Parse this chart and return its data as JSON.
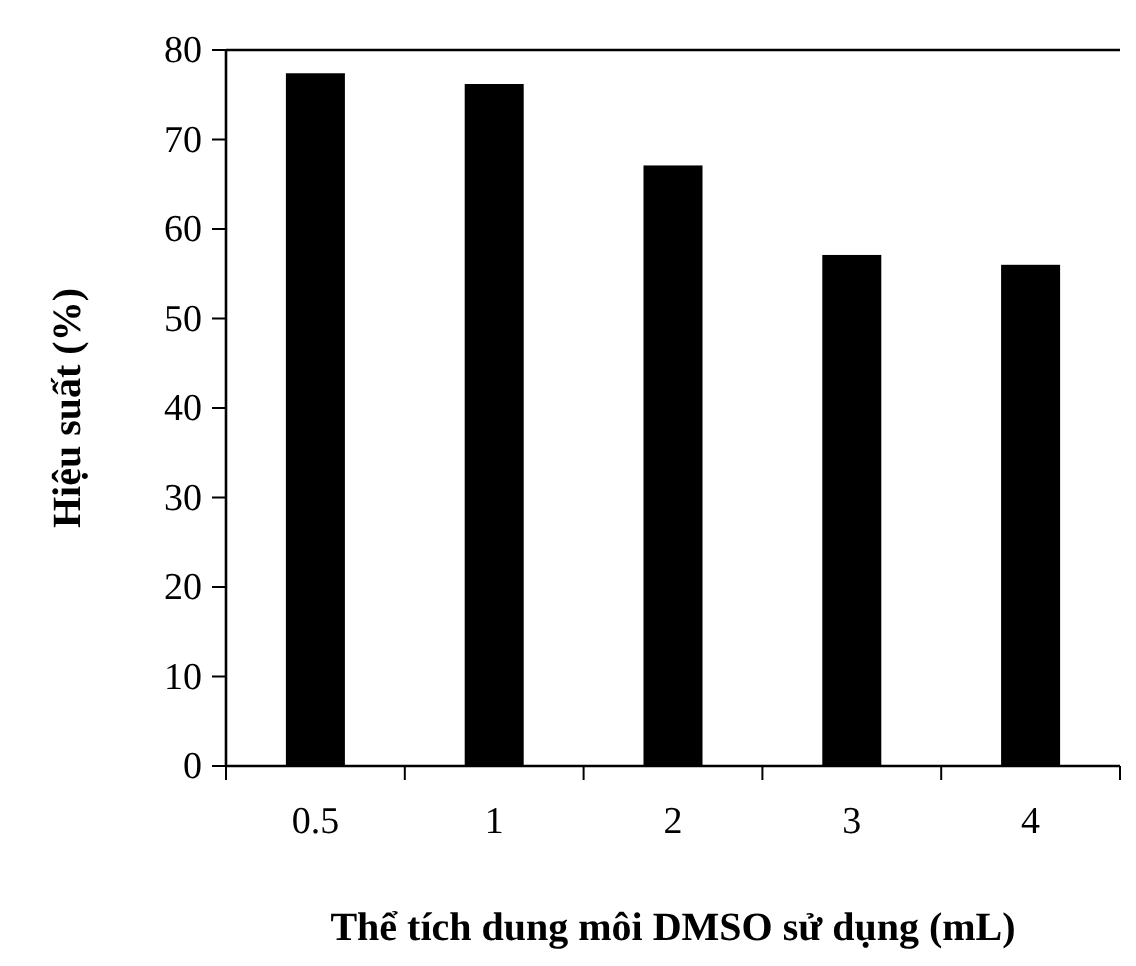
{
  "chart_data": {
    "type": "bar",
    "xlabel": "Thể tích dung môi DMSO sử dụng (mL)",
    "ylabel": "Hiệu suất (%)",
    "categories": [
      "0.5",
      "1",
      "2",
      "3",
      "4"
    ],
    "values": [
      77.4,
      76.2,
      67.1,
      57.1,
      56.0
    ],
    "color": "#000000",
    "ylim": [
      0,
      80
    ],
    "yticks": [
      0,
      10,
      20,
      30,
      40,
      50,
      60,
      70,
      80
    ],
    "grid": false
  }
}
